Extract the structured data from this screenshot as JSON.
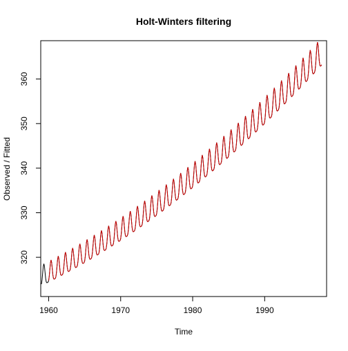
{
  "chart_data": {
    "type": "line",
    "title": "Holt-Winters filtering",
    "xlabel": "Time",
    "ylabel": "Observed / Fitted",
    "xlim": [
      1958.9,
      1998.6
    ],
    "ylim": [
      311.2,
      368.6
    ],
    "xticks": [
      1960,
      1970,
      1980,
      1990
    ],
    "yticks": [
      320,
      330,
      340,
      350,
      360
    ],
    "grid": false,
    "legend": "none",
    "series": [
      {
        "role": "observed",
        "color": "#000000",
        "start": 1959.0,
        "end": 1997.92,
        "model": {
          "level0": 315.4,
          "slope": 0.8,
          "quad": 0.0125,
          "amp0": 2.3,
          "amp_slope": 0.02,
          "phase_peak": 0.33
        }
      },
      {
        "role": "fitted",
        "color": "#cc0000",
        "start": 1960.0,
        "end": 1997.92,
        "model": {
          "level0": 315.4,
          "slope": 0.8,
          "quad": 0.0125,
          "amp0": 2.3,
          "amp_slope": 0.02,
          "phase_peak": 0.33
        }
      }
    ]
  }
}
